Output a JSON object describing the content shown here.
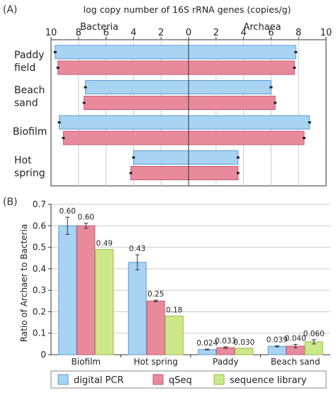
{
  "chart_data": [
    {
      "panel_label": "(A)",
      "type": "bar",
      "orientation": "horizontal-diverging",
      "title": "log copy number of 16S rRNA genes  (copies/g)",
      "left_label": "Bacteria",
      "right_label": "Archaea",
      "xlim": [
        -10,
        10
      ],
      "ticks": [
        10,
        8,
        6,
        4,
        2,
        0,
        2,
        4,
        6,
        8,
        10
      ],
      "tick_values": [
        -10,
        -8,
        -6,
        -4,
        -2,
        0,
        2,
        4,
        6,
        8,
        10
      ],
      "categories": [
        {
          "line1": "Paddy",
          "line2": "field"
        },
        {
          "line1": "Beach",
          "line2": "sand"
        },
        {
          "line1": "Biofilm",
          "line2": ""
        },
        {
          "line1": "Hot",
          "line2": "spring"
        }
      ],
      "series": [
        {
          "key": "dpcr",
          "bacteria": [
            9.7,
            7.5,
            9.4,
            4.0
          ],
          "archaea": [
            7.8,
            6.0,
            8.8,
            3.6
          ]
        },
        {
          "key": "qseq",
          "bacteria": [
            9.5,
            7.6,
            9.1,
            4.2
          ],
          "archaea": [
            7.7,
            6.3,
            8.4,
            3.6
          ]
        }
      ],
      "grid": true
    },
    {
      "panel_label": "(B)",
      "type": "bar",
      "ylabel": "Ratio of Archaer to Bacteria",
      "ylim": [
        0,
        0.7
      ],
      "yticks": [
        "0",
        "0.1",
        "0.2",
        "0.3",
        "0.4",
        "0.5",
        "0.6",
        "0.7"
      ],
      "categories": [
        "Biofilm",
        "Hot spring",
        "Paddy",
        "Beach sand"
      ],
      "series": [
        {
          "name": "digital PCR",
          "values": [
            0.6,
            0.43,
            0.024,
            0.039
          ],
          "labels": [
            "0.60",
            "0.43",
            "0.024",
            "0.039"
          ],
          "errors": [
            0.04,
            0.035,
            0.002,
            0.003
          ]
        },
        {
          "name": "qSeq",
          "values": [
            0.6,
            0.25,
            0.033,
            0.04
          ],
          "labels": [
            "0.60",
            "0.25",
            "0.033",
            "0.040"
          ],
          "errors": [
            0.012,
            0.004,
            0.004,
            0.008
          ]
        },
        {
          "name": "sequence library",
          "values": [
            0.49,
            0.18,
            0.03,
            0.06
          ],
          "labels": [
            "0.49",
            "0.18",
            "0.030",
            "0.060"
          ],
          "errors": [
            0,
            0,
            0,
            0.01
          ]
        }
      ],
      "legend_placement": "bottom",
      "grid": true
    }
  ],
  "colors": {
    "dpcr": "#a9d3f2",
    "dpcr_edge": "#5b9bd0",
    "qseq": "#e88a9c",
    "qseq_edge": "#c45a72",
    "seqlib": "#cde88a",
    "seqlib_edge": "#94bd45",
    "axis": "#333333",
    "grid": "#cccccc"
  }
}
